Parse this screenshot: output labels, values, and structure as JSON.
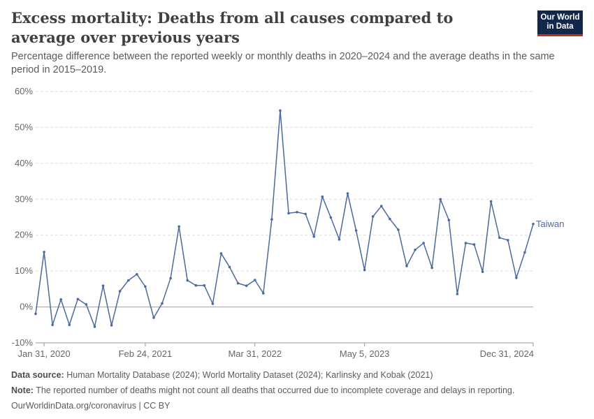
{
  "header": {
    "title": "Excess mortality: Deaths from all causes compared to average over previous years",
    "subtitle": "Percentage difference between the reported weekly or monthly deaths in 2020–2024 and the average deaths in the same period in 2015–2019.",
    "logo_line1": "Our World",
    "logo_line2": "in Data"
  },
  "footer": {
    "source_label": "Data source:",
    "source_text": "Human Mortality Database (2024); World Mortality Dataset (2024); Karlinsky and Kobak (2021)",
    "note_label": "Note:",
    "note_text": "The reported number of deaths might not count all deaths that occurred due to incomplete coverage and delays in reporting.",
    "credit": "OurWorldinData.org/coronavirus | CC BY"
  },
  "colors": {
    "series": "#4c6a9c",
    "grid": "#dddddd",
    "zero_line": "#a1a1a1"
  },
  "chart_data": {
    "type": "line",
    "title": "Excess mortality: Deaths from all causes compared to average over previous years",
    "xlabel": "",
    "ylabel": "",
    "ylim": [
      -10,
      60
    ],
    "yticks": [
      -10,
      0,
      10,
      20,
      30,
      40,
      50,
      60
    ],
    "ytick_labels": [
      "-10%",
      "0%",
      "10%",
      "20%",
      "30%",
      "40%",
      "50%",
      "60%"
    ],
    "xticks": [
      "Jan 31, 2020",
      "Feb 24, 2021",
      "Mar 31, 2022",
      "May 5, 2023",
      "Dec 31, 2024"
    ],
    "xtick_index": [
      1,
      13,
      26,
      39,
      59
    ],
    "grid": true,
    "series": [
      {
        "name": "Taiwan",
        "values": [
          -1.9,
          15.3,
          -5.0,
          2.1,
          -5.0,
          2.2,
          0.7,
          -5.5,
          5.9,
          -5.1,
          4.4,
          7.4,
          9.1,
          5.7,
          -3.0,
          1.0,
          8.0,
          22.4,
          7.4,
          6.0,
          6.0,
          0.9,
          14.9,
          11.1,
          6.6,
          5.9,
          7.5,
          3.8,
          24.4,
          54.7,
          26.1,
          26.4,
          25.9,
          19.6,
          30.7,
          24.9,
          18.8,
          31.6,
          21.3,
          10.3,
          25.2,
          28.1,
          24.5,
          21.5,
          11.4,
          15.9,
          17.8,
          10.9,
          30.0,
          24.2,
          3.6,
          17.8,
          17.4,
          9.8,
          29.4,
          19.3,
          18.6,
          8.1,
          15.2,
          23.1
        ]
      }
    ]
  }
}
